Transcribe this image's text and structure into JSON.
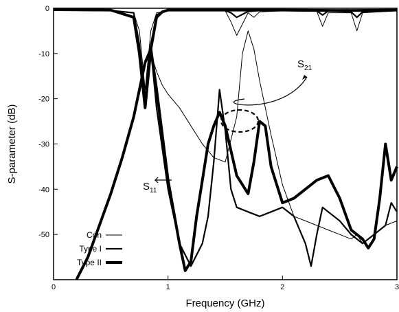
{
  "chart_data": {
    "type": "line",
    "xlabel": "Frequency (GHz)",
    "ylabel": "S-parameter (dB)",
    "xlim": [
      0,
      3
    ],
    "ylim": [
      -60,
      0
    ],
    "xticks": [
      0,
      1,
      2,
      3
    ],
    "yticks": [
      0,
      -10,
      -20,
      -30,
      -40,
      -50
    ],
    "grid": false,
    "legend_position": "bottom-left",
    "legend": [
      {
        "label": "Con",
        "weight": "thin"
      },
      {
        "label": "Type I",
        "weight": "medium"
      },
      {
        "label": "Type II",
        "weight": "thick"
      }
    ],
    "annotations": [
      {
        "text": "S",
        "subscript": "21",
        "target": "S21 curves"
      },
      {
        "text": "S",
        "subscript": "11",
        "target": "S11 curves"
      }
    ],
    "series": [
      {
        "name": "Con",
        "parameter": "S11",
        "weight": "thin",
        "x": [
          0.2,
          0.3,
          0.4,
          0.5,
          0.6,
          0.7,
          0.75,
          0.8,
          0.85,
          0.9,
          0.95,
          1.0,
          1.1,
          1.2,
          1.3,
          1.4,
          1.5,
          1.6,
          1.65,
          1.7,
          1.75,
          1.8,
          1.9,
          2.0,
          2.1,
          2.2,
          2.3,
          2.4,
          2.5,
          2.6,
          2.65,
          2.7,
          2.8,
          2.9,
          3.0
        ],
        "y": [
          -60,
          -55,
          -48,
          -41,
          -33,
          -24,
          -18,
          -12,
          -10,
          -14,
          -17,
          -19,
          -22,
          -26,
          -30,
          -33,
          -34,
          -24,
          -10,
          -5,
          -9,
          -16,
          -28,
          -39,
          -46,
          -47,
          -48,
          -49,
          -50,
          -51,
          -50,
          -52,
          -50,
          -48,
          -47
        ]
      },
      {
        "name": "Type I",
        "parameter": "S11",
        "weight": "medium",
        "x": [
          0.2,
          0.3,
          0.4,
          0.5,
          0.6,
          0.7,
          0.75,
          0.8,
          0.85,
          0.9,
          1.0,
          1.1,
          1.2,
          1.3,
          1.35,
          1.4,
          1.45,
          1.5,
          1.55,
          1.6,
          1.7,
          1.8,
          1.9,
          2.0,
          2.1,
          2.2,
          2.25,
          2.3,
          2.35,
          2.4,
          2.5,
          2.6,
          2.7,
          2.8,
          2.9,
          2.95,
          3.0
        ],
        "y": [
          -60,
          -55,
          -48,
          -41,
          -33,
          -24,
          -18,
          -12,
          -9,
          -22,
          -40,
          -52,
          -57,
          -52,
          -46,
          -34,
          -18,
          -27,
          -40,
          -44,
          -45,
          -46,
          -45,
          -44,
          -46,
          -52,
          -57,
          -50,
          -44,
          -45,
          -47,
          -50,
          -52,
          -50,
          -48,
          -43,
          -45
        ]
      },
      {
        "name": "Type II",
        "parameter": "S11",
        "weight": "thick",
        "x": [
          0.2,
          0.3,
          0.4,
          0.5,
          0.6,
          0.7,
          0.75,
          0.8,
          0.85,
          0.9,
          1.0,
          1.1,
          1.15,
          1.2,
          1.25,
          1.3,
          1.35,
          1.4,
          1.45,
          1.5,
          1.6,
          1.7,
          1.75,
          1.8,
          1.85,
          1.9,
          2.0,
          2.1,
          2.2,
          2.3,
          2.4,
          2.5,
          2.6,
          2.7,
          2.75,
          2.8,
          2.85,
          2.9,
          2.95,
          3.0
        ],
        "y": [
          -60,
          -55,
          -48,
          -41,
          -33,
          -24,
          -18,
          -12,
          -9,
          -18,
          -38,
          -52,
          -58,
          -56,
          -46,
          -38,
          -30,
          -26,
          -23,
          -26,
          -37,
          -41,
          -34,
          -25,
          -26,
          -35,
          -43,
          -42,
          -40,
          -38,
          -37,
          -42,
          -49,
          -51,
          -53,
          -51,
          -42,
          -30,
          -38,
          -35
        ]
      },
      {
        "name": "Con",
        "parameter": "S21",
        "weight": "thin",
        "x": [
          0.0,
          0.5,
          0.7,
          0.75,
          0.8,
          0.85,
          0.9,
          0.95,
          1.0,
          1.5,
          1.55,
          1.6,
          1.7,
          1.75,
          1.8,
          2.0,
          2.3,
          2.35,
          2.4,
          2.6,
          2.65,
          2.7,
          3.0
        ],
        "y": [
          -0.5,
          -0.6,
          -1,
          -5,
          -18,
          -5,
          -1,
          -0.8,
          -0.5,
          -0.6,
          -3,
          -6,
          -1,
          -2,
          -0.8,
          -0.6,
          -0.7,
          -4,
          -1,
          -1,
          -5,
          -1,
          -0.6
        ]
      },
      {
        "name": "Type I",
        "parameter": "S21",
        "weight": "medium",
        "x": [
          0.0,
          0.5,
          0.7,
          0.75,
          0.8,
          0.85,
          0.9,
          0.95,
          1.0,
          1.5,
          1.55,
          1.6,
          1.7,
          1.75,
          1.8,
          2.0,
          2.3,
          2.35,
          2.4,
          2.6,
          2.65,
          2.7,
          3.0
        ],
        "y": [
          -0.4,
          -0.5,
          -1,
          -8,
          -20,
          -8,
          -1.5,
          -0.7,
          -0.5,
          -0.5,
          -1,
          -2,
          -0.7,
          -0.6,
          -0.5,
          -0.5,
          -0.6,
          -1.5,
          -0.6,
          -0.8,
          -2,
          -0.8,
          -0.5
        ]
      },
      {
        "name": "Type II",
        "parameter": "S21",
        "weight": "thick",
        "x": [
          0.0,
          0.5,
          0.7,
          0.75,
          0.8,
          0.85,
          0.9,
          0.95,
          1.0,
          1.5,
          2.0,
          2.5,
          3.0
        ],
        "y": [
          -0.3,
          -0.4,
          -2,
          -10,
          -22,
          -9,
          -2,
          -0.8,
          -0.4,
          -0.4,
          -0.4,
          -0.5,
          -0.4
        ]
      }
    ]
  }
}
